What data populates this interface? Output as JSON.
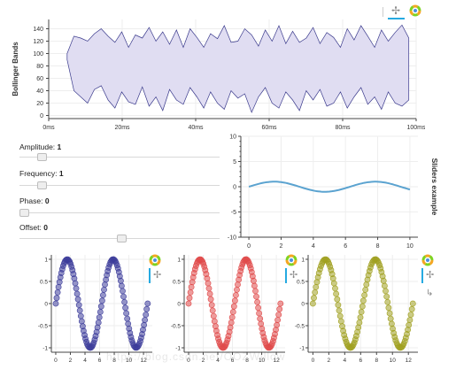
{
  "sliders": [
    {
      "label": "Amplitude:",
      "value": "1",
      "fraction": 0.0
    },
    {
      "label": "Frequency:",
      "value": "1",
      "fraction": 0.06
    },
    {
      "label": "Phase:",
      "value": "0",
      "fraction": 0.0
    },
    {
      "label": "Offset:",
      "value": "0",
      "fraction": 0.5
    }
  ],
  "watermark": "https://blog.csdn.net/OOZWillow",
  "toolbar_icons": [
    "pan-icon",
    "bokeh-logo-icon",
    "reset-icon"
  ],
  "chart_data": [
    {
      "type": "area",
      "title": "",
      "ylabel": "Bollinger Bands",
      "xlabel": "",
      "x_tick_labels": [
        "0ms",
        "20ms",
        "40ms",
        "60ms",
        "80ms",
        "100ms"
      ],
      "y_tick_labels": [
        "0",
        "20",
        "40",
        "60",
        "80",
        "100",
        "120",
        "140"
      ],
      "xlim": [
        0,
        100
      ],
      "ylim": [
        -5,
        155
      ],
      "colors": {
        "fill": "#e0ddf2",
        "line": "#3a3a8c"
      },
      "upper": [
        100,
        128,
        125,
        120,
        132,
        140,
        128,
        118,
        135,
        110,
        130,
        125,
        142,
        120,
        135,
        115,
        138,
        110,
        140,
        126,
        110,
        132,
        124,
        145,
        118,
        120,
        140,
        130,
        112,
        138,
        120,
        145,
        116,
        136,
        118,
        125,
        142,
        116,
        134,
        126,
        110,
        140,
        122,
        145,
        128,
        110,
        138,
        120,
        134,
        146,
        125
      ],
      "lower": [
        90,
        40,
        30,
        20,
        42,
        48,
        25,
        12,
        38,
        22,
        18,
        46,
        15,
        30,
        8,
        42,
        25,
        18,
        45,
        30,
        12,
        38,
        20,
        10,
        40,
        28,
        35,
        5,
        30,
        45,
        20,
        12,
        38,
        25,
        8,
        40,
        25,
        42,
        15,
        20,
        38,
        12,
        30,
        45,
        18,
        30,
        10,
        38,
        20,
        15,
        25
      ]
    },
    {
      "type": "line",
      "title": "Sliders example",
      "x_tick_labels": [
        "0",
        "2",
        "4",
        "6",
        "8",
        "10"
      ],
      "y_tick_labels": [
        "-10",
        "-5",
        "0",
        "5",
        "10"
      ],
      "xlim": [
        -0.5,
        10.5
      ],
      "ylim": [
        -10,
        10
      ],
      "colors": {
        "line": "#5ba3d0"
      },
      "function": "sin(x)"
    },
    {
      "type": "scatter",
      "title": "",
      "x_tick_labels": [
        "0",
        "2",
        "4",
        "6",
        "8",
        "10",
        "12"
      ],
      "y_tick_labels": [
        "-1",
        "-0.5",
        "0",
        "0.5",
        "1"
      ],
      "xlim": [
        -0.6,
        13.2
      ],
      "ylim": [
        -1.1,
        1.1
      ],
      "colors": {
        "point": "#3d3d9a"
      },
      "function": "sin(x)"
    },
    {
      "type": "scatter",
      "title": "",
      "x_tick_labels": [
        "0",
        "2",
        "4",
        "6",
        "8",
        "10",
        "12"
      ],
      "y_tick_labels": [
        "-1",
        "-0.5",
        "0",
        "0.5",
        "1"
      ],
      "xlim": [
        -0.6,
        13.2
      ],
      "ylim": [
        -1.1,
        1.1
      ],
      "colors": {
        "point": "#e04a4a"
      },
      "function": "sin(x)"
    },
    {
      "type": "scatter",
      "title": "",
      "x_tick_labels": [
        "0",
        "2",
        "4",
        "6",
        "8",
        "10",
        "12"
      ],
      "y_tick_labels": [
        "-1",
        "-0.5",
        "0",
        "0.5",
        "1"
      ],
      "xlim": [
        -0.6,
        13.2
      ],
      "ylim": [
        -1.1,
        1.1
      ],
      "colors": {
        "point": "#a0a020"
      },
      "function": "sin(x)"
    }
  ]
}
